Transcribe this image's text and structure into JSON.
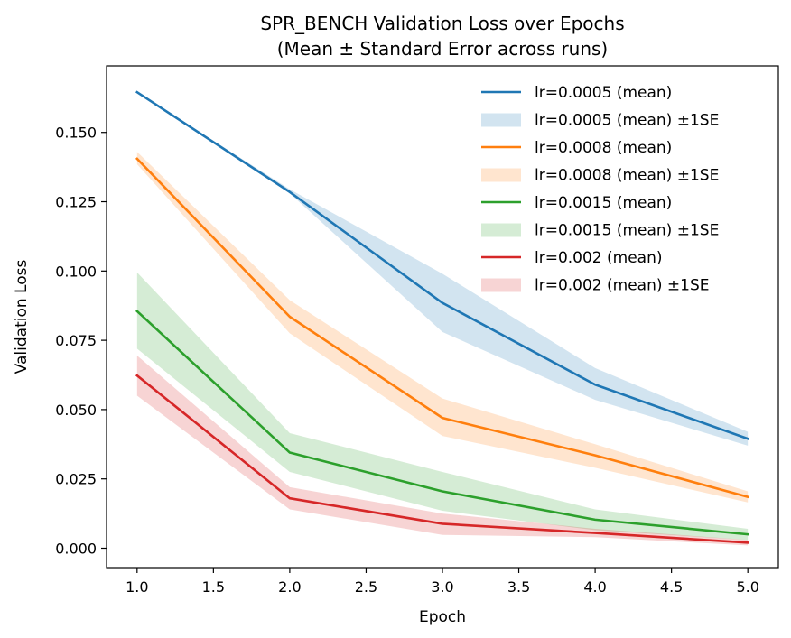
{
  "chart_data": {
    "type": "line",
    "title_line1": "SPR_BENCH Validation Loss over Epochs",
    "title_line2": "(Mean ± Standard Error across runs)",
    "xlabel": "Epoch",
    "ylabel": "Validation Loss",
    "xlim": [
      0.8,
      5.2
    ],
    "ylim": [
      -0.007,
      0.174
    ],
    "xticks": [
      "1.0",
      "1.5",
      "2.0",
      "2.5",
      "3.0",
      "3.5",
      "4.0",
      "4.5",
      "5.0"
    ],
    "xtick_values": [
      1.0,
      1.5,
      2.0,
      2.5,
      3.0,
      3.5,
      4.0,
      4.5,
      5.0
    ],
    "yticks": [
      "0.000",
      "0.025",
      "0.050",
      "0.075",
      "0.100",
      "0.125",
      "0.150"
    ],
    "ytick_values": [
      0.0,
      0.025,
      0.05,
      0.075,
      0.1,
      0.125,
      0.15
    ],
    "legend_position": "top-right",
    "grid": false,
    "x": [
      1,
      2,
      3,
      4,
      5
    ],
    "series": [
      {
        "name": "lr=0.0005 (mean)",
        "band_name": "lr=0.0005 (mean) ±1SE",
        "color": "#1f77b4",
        "values": [
          0.1645,
          0.1285,
          0.0885,
          0.059,
          0.0395
        ],
        "lower": [
          0.1645,
          0.128,
          0.078,
          0.0535,
          0.037
        ],
        "upper": [
          0.1645,
          0.1295,
          0.099,
          0.065,
          0.042
        ]
      },
      {
        "name": "lr=0.0008 (mean)",
        "band_name": "lr=0.0008 (mean) ±1SE",
        "color": "#ff7f0e",
        "values": [
          0.1405,
          0.0835,
          0.047,
          0.0335,
          0.0185
        ],
        "lower": [
          0.1385,
          0.0775,
          0.0405,
          0.029,
          0.0165
        ],
        "upper": [
          0.143,
          0.0895,
          0.054,
          0.0375,
          0.0205
        ]
      },
      {
        "name": "lr=0.0015 (mean)",
        "band_name": "lr=0.0015 (mean) ±1SE",
        "color": "#2ca02c",
        "values": [
          0.0855,
          0.0345,
          0.0205,
          0.0103,
          0.005
        ],
        "lower": [
          0.072,
          0.0275,
          0.0135,
          0.0065,
          0.003
        ],
        "upper": [
          0.0995,
          0.0415,
          0.0275,
          0.014,
          0.007
        ]
      },
      {
        "name": "lr=0.002 (mean)",
        "band_name": "lr=0.002 (mean) ±1SE",
        "color": "#d62728",
        "values": [
          0.0623,
          0.018,
          0.0088,
          0.0055,
          0.002
        ],
        "lower": [
          0.055,
          0.014,
          0.0048,
          0.004,
          0.001
        ],
        "upper": [
          0.0695,
          0.022,
          0.0125,
          0.007,
          0.003
        ]
      }
    ]
  }
}
